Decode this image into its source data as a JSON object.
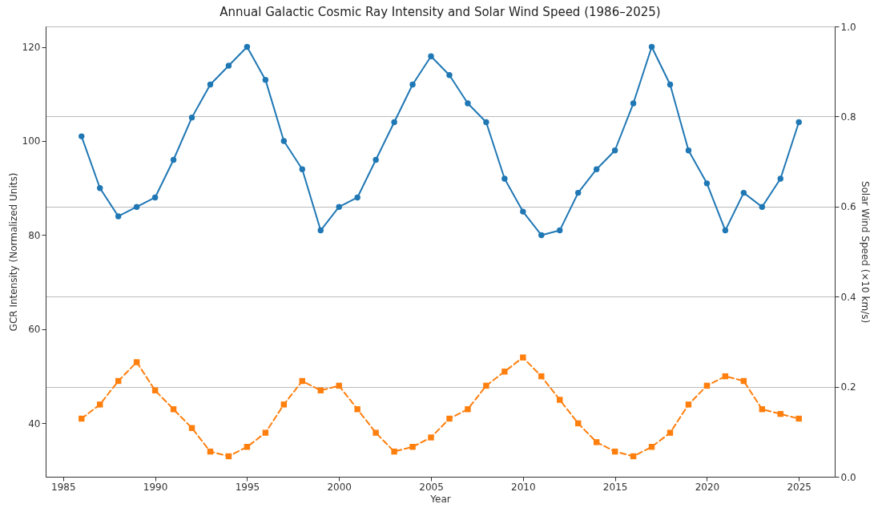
{
  "chart_data": {
    "type": "line",
    "title": "Annual Galactic Cosmic Ray Intensity and Solar Wind Speed (1986–2025)",
    "xlabel": "Year",
    "ylabel": "GCR Intensity (Normalized Units)",
    "y2label": "Solar Wind Speed (×10 km/s)",
    "x": [
      1986,
      1987,
      1988,
      1989,
      1990,
      1991,
      1992,
      1993,
      1994,
      1995,
      1996,
      1997,
      1998,
      1999,
      2000,
      2001,
      2002,
      2003,
      2004,
      2005,
      2006,
      2007,
      2008,
      2009,
      2010,
      2011,
      2012,
      2013,
      2014,
      2015,
      2016,
      2017,
      2018,
      2019,
      2020,
      2021,
      2022,
      2023,
      2024,
      2025
    ],
    "series": [
      {
        "color": "#1f77b4",
        "marker": "circle",
        "line_style": "solid",
        "values": [
          101,
          90,
          84,
          86,
          88,
          96,
          105,
          112,
          116,
          120,
          113,
          100,
          94,
          81,
          86,
          88,
          96,
          104,
          112,
          118,
          114,
          108,
          104,
          92,
          85,
          80,
          81,
          89,
          94,
          98,
          108,
          120,
          112,
          98,
          91,
          81,
          89,
          86,
          92,
          104
        ]
      },
      {
        "color": "#ff7f0e",
        "marker": "square",
        "line_style": "dashed",
        "values": [
          41,
          44,
          49,
          53,
          47,
          43,
          39,
          34,
          33,
          35,
          38,
          44,
          49,
          47,
          48,
          43,
          38,
          34,
          35,
          37,
          41,
          43,
          48,
          51,
          54,
          50,
          45,
          40,
          36,
          34,
          33,
          35,
          38,
          44,
          48,
          50,
          49,
          43,
          42,
          41
        ]
      }
    ],
    "xlim": [
      1984.05,
      2026.95
    ],
    "xticks": [
      1985,
      1990,
      1995,
      2000,
      2005,
      2010,
      2015,
      2020,
      2025
    ],
    "ylim": [
      28.65,
      124.35
    ],
    "yticks": [
      40,
      60,
      80,
      100,
      120
    ],
    "y2lim": [
      0,
      1
    ],
    "y2ticks": [
      {
        "value": 0,
        "label": "0.0"
      },
      {
        "value": 0.2,
        "label": "0.2"
      },
      {
        "value": 0.4,
        "label": "0.4"
      },
      {
        "value": 0.6,
        "label": "0.6"
      },
      {
        "value": 0.8,
        "label": "0.8"
      },
      {
        "value": 1,
        "label": "1.0"
      }
    ],
    "grid": "y"
  }
}
